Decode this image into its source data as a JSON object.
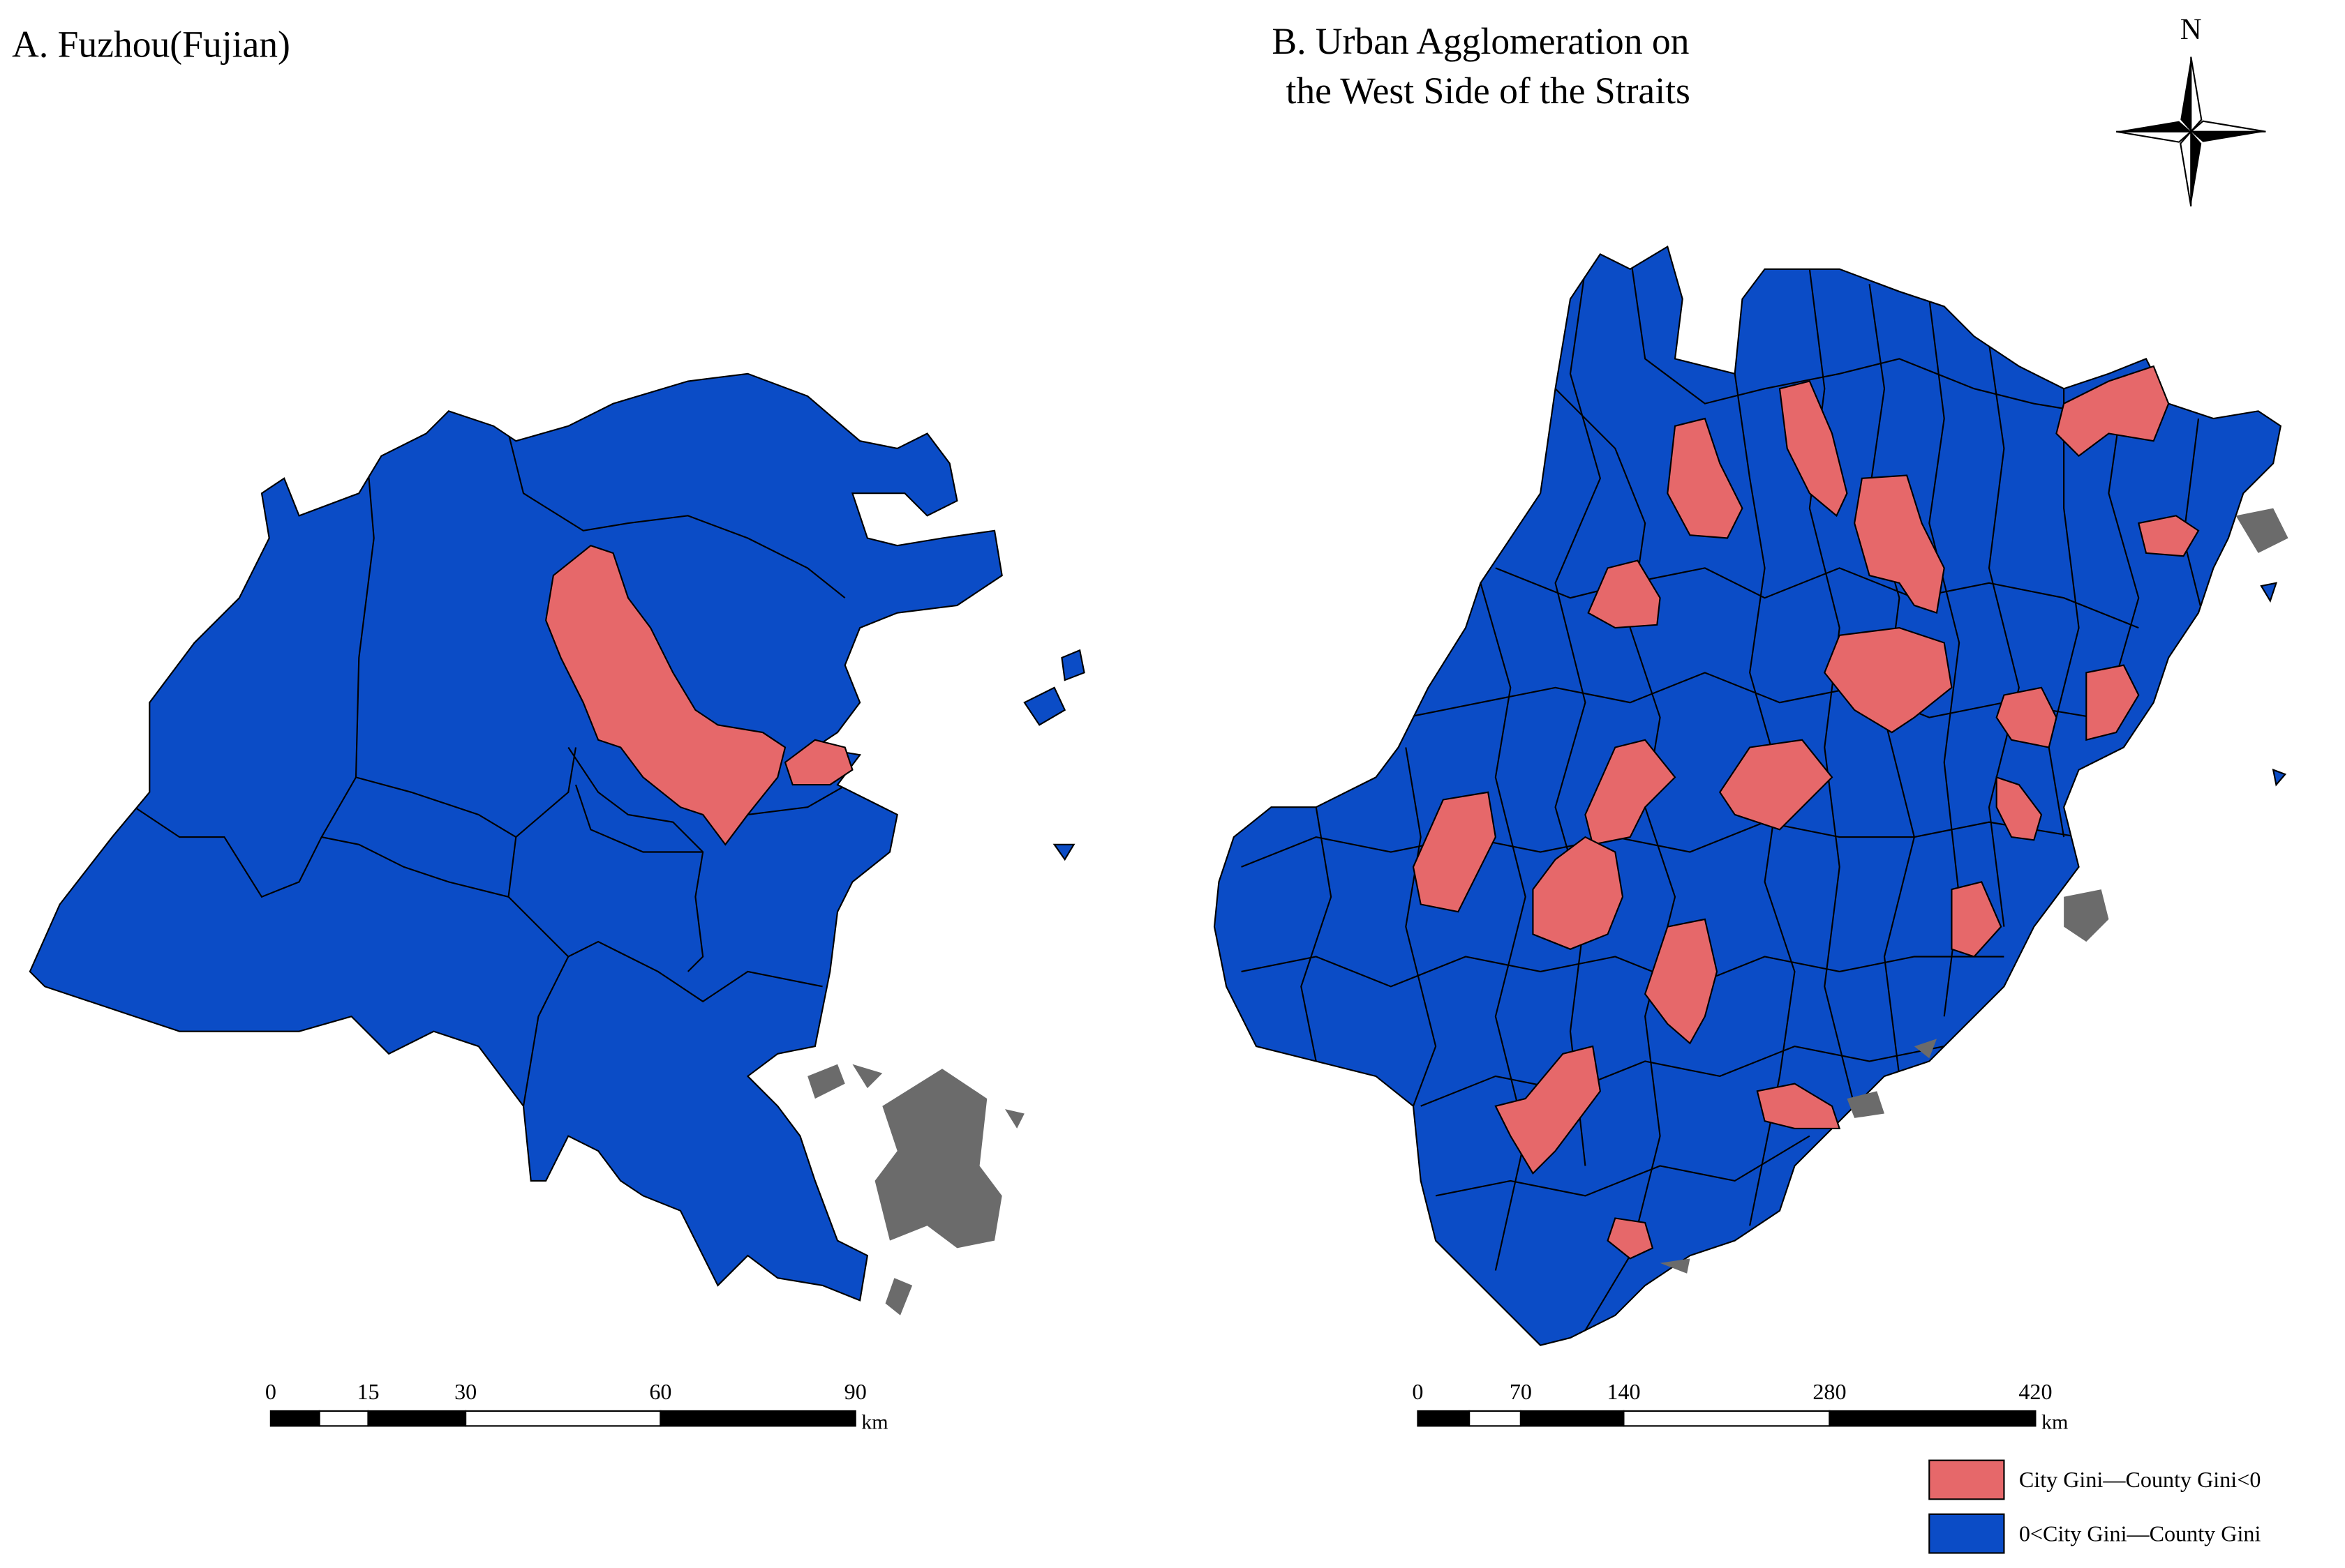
{
  "panel_a": {
    "title": "A. Fuzhou(Fujian)",
    "scale": {
      "ticks": [
        0,
        15,
        30,
        60,
        90
      ],
      "unit": "km"
    }
  },
  "panel_b": {
    "title_lines": [
      "B. Urban Agglomeration on",
      "the West Side of the Straits"
    ],
    "scale": {
      "ticks": [
        0,
        70,
        140,
        280,
        420
      ],
      "unit": "km"
    }
  },
  "north": "N",
  "legend": [
    {
      "label": "City Gini—County Gini<0",
      "color": "#e6686a"
    },
    {
      "label": "0<City Gini—County Gini",
      "color": "#0b4cc6"
    }
  ]
}
